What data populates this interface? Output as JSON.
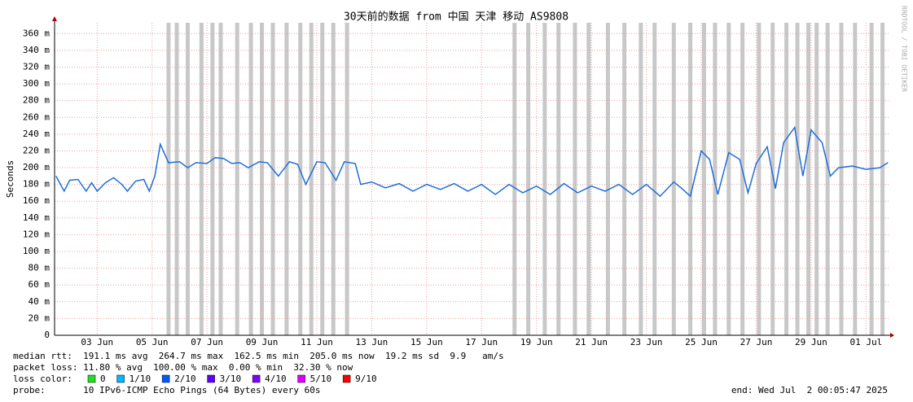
{
  "chart_data": {
    "type": "line",
    "title": "30天前的数据 from 中国 天津 移动 AS9808",
    "y_label": "Seconds",
    "side_label": "RRDTOOL / TOBI OETIKER",
    "xlim": [
      1.45,
      31.85
    ],
    "ylim": [
      0,
      370
    ],
    "xticks": [
      {
        "value": 3,
        "label": "03 Jun"
      },
      {
        "value": 5,
        "label": "05 Jun"
      },
      {
        "value": 7,
        "label": "07 Jun"
      },
      {
        "value": 9,
        "label": "09 Jun"
      },
      {
        "value": 11,
        "label": "11 Jun"
      },
      {
        "value": 13,
        "label": "13 Jun"
      },
      {
        "value": 15,
        "label": "15 Jun"
      },
      {
        "value": 17,
        "label": "17 Jun"
      },
      {
        "value": 19,
        "label": "19 Jun"
      },
      {
        "value": 21,
        "label": "21 Jun"
      },
      {
        "value": 23,
        "label": "23 Jun"
      },
      {
        "value": 25,
        "label": "25 Jun"
      },
      {
        "value": 27,
        "label": "27 Jun"
      },
      {
        "value": 29,
        "label": "29 Jun"
      },
      {
        "value": 31,
        "label": "01 Jul"
      }
    ],
    "yticks": [
      0,
      {
        "value": 20,
        "label": "20 m"
      },
      {
        "value": 40,
        "label": "40 m"
      },
      {
        "value": 60,
        "label": "60 m"
      },
      {
        "value": 80,
        "label": "80 m"
      },
      {
        "value": 100,
        "label": "100 m"
      },
      {
        "value": 120,
        "label": "120 m"
      },
      {
        "value": 140,
        "label": "140 m"
      },
      {
        "value": 160,
        "label": "160 m"
      },
      {
        "value": 180,
        "label": "180 m"
      },
      {
        "value": 200,
        "label": "200 m"
      },
      {
        "value": 220,
        "label": "220 m"
      },
      {
        "value": 240,
        "label": "240 m"
      },
      {
        "value": 260,
        "label": "260 m"
      },
      {
        "value": 280,
        "label": "280 m"
      },
      {
        "value": 300,
        "label": "300 m"
      },
      {
        "value": 320,
        "label": "320 m"
      },
      {
        "value": 340,
        "label": "340 m"
      },
      {
        "value": 360,
        "label": "360 m"
      }
    ],
    "grid": true,
    "x": [
      1.5,
      1.8,
      2.0,
      2.3,
      2.6,
      2.8,
      3.0,
      3.3,
      3.6,
      3.9,
      4.1,
      4.4,
      4.7,
      4.9,
      5.1,
      5.3,
      5.6,
      6.0,
      6.3,
      6.6,
      7.0,
      7.3,
      7.6,
      7.9,
      8.2,
      8.5,
      8.9,
      9.2,
      9.6,
      10.0,
      10.3,
      10.6,
      11.0,
      11.3,
      11.7,
      12.0,
      12.4,
      12.6,
      13.0,
      13.5,
      14.0,
      14.5,
      15.0,
      15.5,
      16.0,
      16.5,
      17.0,
      17.5,
      18.0,
      18.5,
      19.0,
      19.5,
      20.0,
      20.5,
      21.0,
      21.5,
      22.0,
      22.5,
      23.0,
      23.5,
      24.0,
      24.3,
      24.6,
      25.0,
      25.3,
      25.6,
      26.0,
      26.4,
      26.7,
      27.0,
      27.4,
      27.7,
      28.0,
      28.4,
      28.7,
      29.0,
      29.4,
      29.7,
      30.0,
      30.5,
      31.0,
      31.5,
      31.8
    ],
    "series": [
      {
        "color": "#1e6fd9",
        "values": [
          190,
          172,
          185,
          186,
          172,
          182,
          172,
          182,
          188,
          180,
          172,
          184,
          186,
          172,
          190,
          228,
          206,
          207,
          200,
          206,
          205,
          212,
          211,
          205,
          206,
          200,
          207,
          206,
          190,
          207,
          204,
          180,
          207,
          206,
          185,
          207,
          205,
          180,
          183,
          176,
          181,
          172,
          180,
          174,
          181,
          172,
          180,
          168,
          180,
          170,
          178,
          168,
          181,
          170,
          178,
          172,
          180,
          168,
          180,
          166,
          183,
          175,
          166,
          220,
          210,
          168,
          218,
          210,
          170,
          205,
          225,
          175,
          230,
          248,
          190,
          245,
          230,
          190,
          200,
          202,
          198,
          200,
          206
        ]
      }
    ],
    "loss_color": "#c8c8c8",
    "loss_x": [
      5.6,
      5.9,
      6.3,
      6.8,
      7.2,
      7.5,
      8.1,
      8.6,
      9.0,
      9.4,
      9.9,
      10.4,
      10.8,
      11.2,
      11.6,
      12.1,
      18.2,
      18.7,
      19.3,
      19.8,
      20.4,
      20.9,
      21.6,
      22.2,
      22.8,
      23.3,
      24.0,
      24.6,
      25.1,
      25.5,
      26.0,
      26.5,
      27.1,
      27.6,
      28.1,
      28.5,
      28.9,
      29.2,
      29.6,
      30.1,
      30.6,
      31.2,
      31.6
    ],
    "stats": {
      "median_rtt": "median rtt:  191.1 ms avg  264.7 ms max  162.5 ms min  205.0 ms now  19.2 ms sd  9.9   am/s",
      "packet_loss": "packet loss: 11.80 % avg  100.00 % max  0.00 % min  32.30 % now",
      "loss_color_label": "loss color:",
      "loss_legend": [
        {
          "color": "#22dd22",
          "label": "0"
        },
        {
          "color": "#00b8ff",
          "label": "1/10"
        },
        {
          "color": "#0059ff",
          "label": "2/10"
        },
        {
          "color": "#5e00ff",
          "label": "3/10"
        },
        {
          "color": "#7e00ff",
          "label": "4/10"
        },
        {
          "color": "#dd00ff",
          "label": "5/10"
        },
        {
          "color": "#ff0000",
          "label": "9/10"
        }
      ],
      "probe": "probe:       10 IPv6-ICMP Echo Pings (64 Bytes) every 60s",
      "end": "end: Wed Jul  2 00:05:47 2025"
    }
  }
}
